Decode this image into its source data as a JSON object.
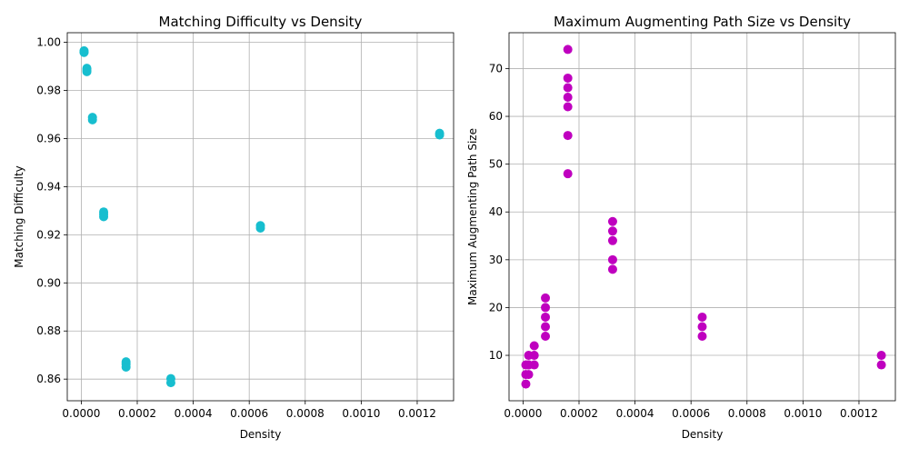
{
  "chart_data": [
    {
      "type": "scatter",
      "title": "Matching Difficulty vs Density",
      "xlabel": "Density",
      "ylabel": "Matching Difficulty",
      "xlim": [
        -5e-05,
        0.00133
      ],
      "ylim": [
        0.851,
        1.004
      ],
      "xticks": [
        0.0,
        0.0002,
        0.0004,
        0.0006,
        0.0008,
        0.001,
        0.0012
      ],
      "xtick_labels": [
        "0.0000",
        "0.0002",
        "0.0004",
        "0.0006",
        "0.0008",
        "0.0010",
        "0.0012"
      ],
      "yticks": [
        0.86,
        0.88,
        0.9,
        0.92,
        0.94,
        0.96,
        0.98,
        1.0
      ],
      "ytick_labels": [
        "0.86",
        "0.88",
        "0.90",
        "0.92",
        "0.94",
        "0.96",
        "0.98",
        "1.00"
      ],
      "grid": true,
      "color": "#17becf",
      "series": [
        {
          "x": [
            1e-05,
            1e-05,
            1e-05,
            2e-05,
            2e-05,
            2e-05,
            4e-05,
            4e-05,
            8e-05,
            8e-05,
            8e-05,
            0.00016,
            0.00016,
            0.00016,
            0.00032,
            0.00032,
            0.00064,
            0.00064,
            0.00128,
            0.00128
          ],
          "y": [
            0.9965,
            0.996,
            0.9958,
            0.9892,
            0.9885,
            0.9878,
            0.9688,
            0.9678,
            0.9295,
            0.9285,
            0.9275,
            0.8672,
            0.8662,
            0.865,
            0.8602,
            0.8585,
            0.9238,
            0.9228,
            0.9622,
            0.9615
          ]
        }
      ]
    },
    {
      "type": "scatter",
      "title": "Maximum Augmenting Path Size vs Density",
      "xlabel": "Density",
      "ylabel": "Maximum Augmenting Path Size",
      "xlim": [
        -5e-05,
        0.00133
      ],
      "ylim": [
        0.5,
        77.5
      ],
      "xticks": [
        0.0,
        0.0002,
        0.0004,
        0.0006,
        0.0008,
        0.001,
        0.0012
      ],
      "xtick_labels": [
        "0.0000",
        "0.0002",
        "0.0004",
        "0.0006",
        "0.0008",
        "0.0010",
        "0.0012"
      ],
      "yticks": [
        10,
        20,
        30,
        40,
        50,
        60,
        70
      ],
      "ytick_labels": [
        "10",
        "20",
        "30",
        "40",
        "50",
        "60",
        "70"
      ],
      "grid": true,
      "color": "#bf00bf",
      "series": [
        {
          "x": [
            1e-05,
            1e-05,
            1e-05,
            2e-05,
            2e-05,
            2e-05,
            2e-05,
            4e-05,
            4e-05,
            4e-05,
            8e-05,
            8e-05,
            8e-05,
            8e-05,
            8e-05,
            0.00016,
            0.00016,
            0.00016,
            0.00016,
            0.00016,
            0.00016,
            0.00016,
            0.00032,
            0.00032,
            0.00032,
            0.00032,
            0.00032,
            0.00064,
            0.00064,
            0.00064,
            0.00128,
            0.00128
          ],
          "y": [
            4,
            6,
            8,
            6,
            8,
            10,
            8,
            8,
            10,
            12,
            14,
            16,
            18,
            20,
            22,
            48,
            56,
            62,
            64,
            66,
            68,
            74,
            28,
            30,
            34,
            36,
            38,
            14,
            16,
            18,
            8,
            10
          ]
        }
      ]
    }
  ]
}
